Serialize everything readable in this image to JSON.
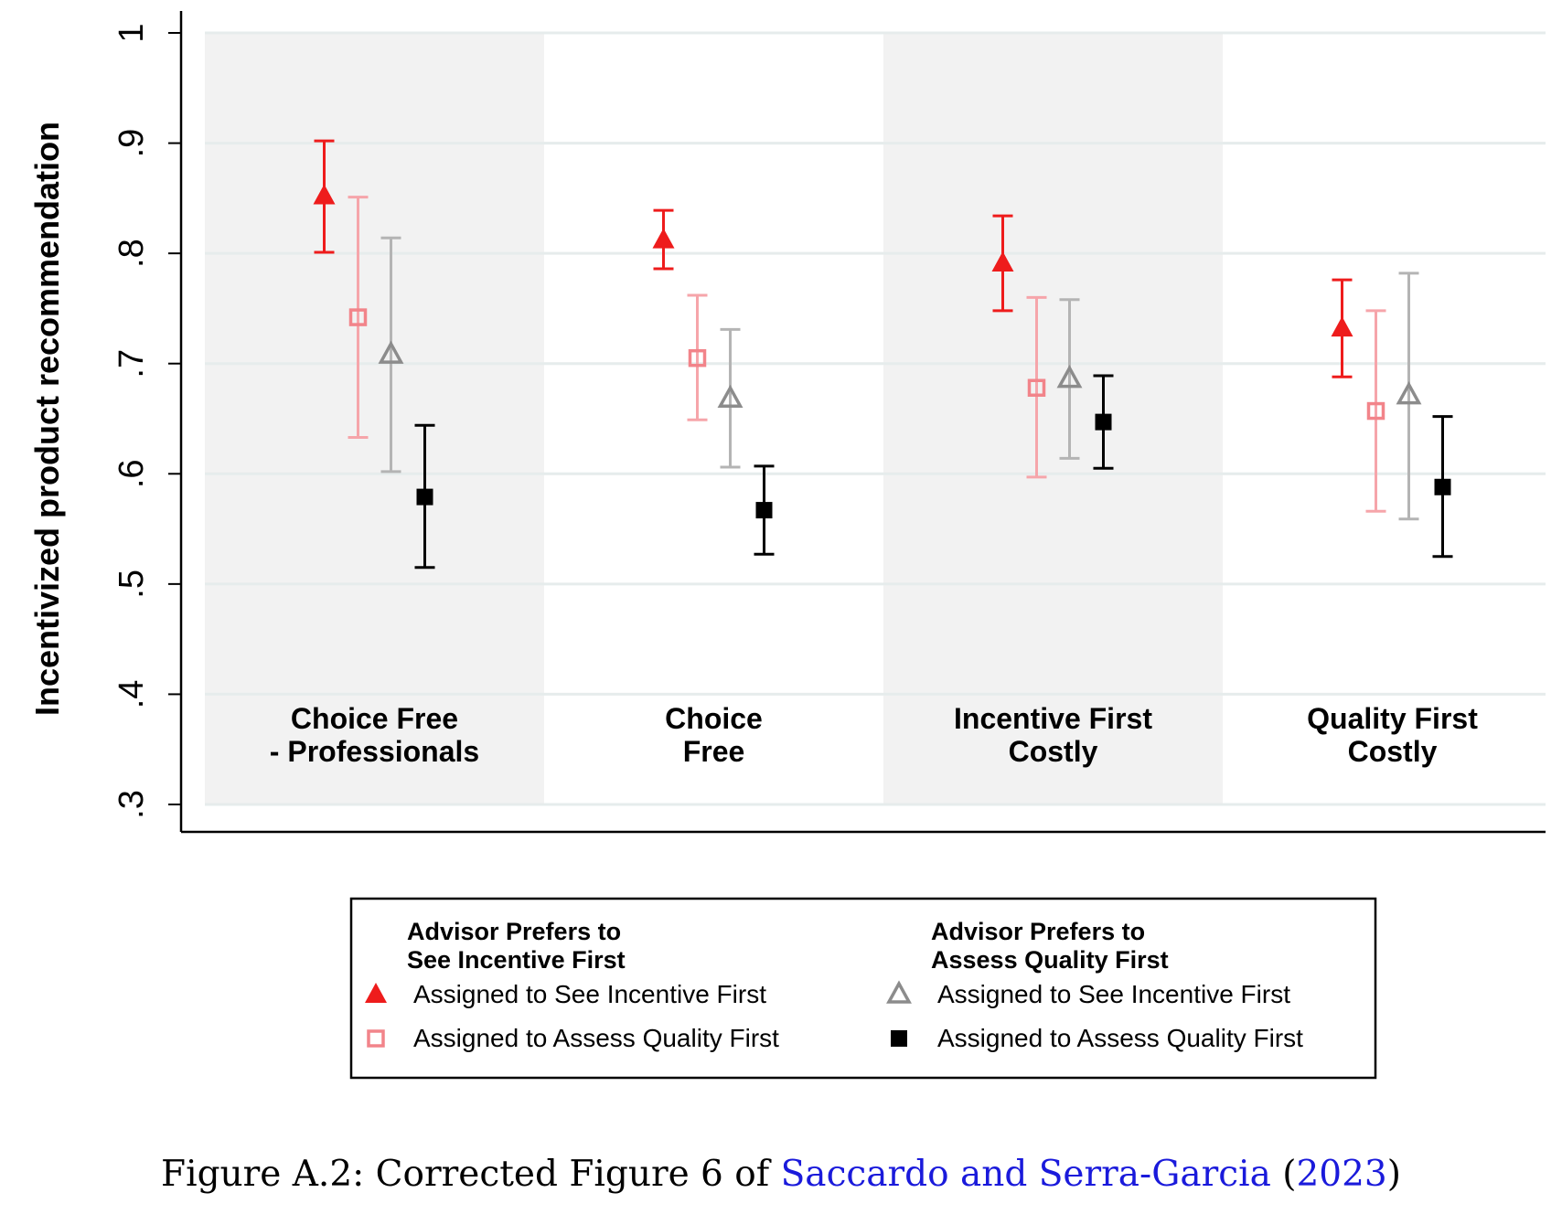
{
  "chart_data": {
    "type": "scatter",
    "subtype": "point-with-95pct-error-bars",
    "ylabel": "Incentivized product recommendation",
    "xlabel": "",
    "ylim": [
      0.3,
      1.0
    ],
    "yticks": [
      {
        "value": 0.3,
        "label": ".3"
      },
      {
        "value": 0.4,
        "label": ".4"
      },
      {
        "value": 0.5,
        "label": ".5"
      },
      {
        "value": 0.6,
        "label": ".6"
      },
      {
        "value": 0.7,
        "label": ".7"
      },
      {
        "value": 0.8,
        "label": ".8"
      },
      {
        "value": 0.9,
        "label": ".9"
      },
      {
        "value": 1.0,
        "label": "1"
      }
    ],
    "grid": true,
    "panels": [
      {
        "label_lines": [
          "Choice Free",
          "- Professionals"
        ],
        "shaded": true
      },
      {
        "label_lines": [
          "Choice",
          "Free"
        ],
        "shaded": false
      },
      {
        "label_lines": [
          "Incentive First",
          "Costly"
        ],
        "shaded": true
      },
      {
        "label_lines": [
          "Quality First",
          "Costly"
        ],
        "shaded": false
      }
    ],
    "series": [
      {
        "group": "Advisor Prefers to See Incentive First",
        "name": "Assigned to See Incentive First",
        "marker": "triangle-filled",
        "color": "#ee1c1c",
        "values": [
          0.852,
          0.812,
          0.791,
          0.732
        ],
        "ci_low": [
          0.801,
          0.786,
          0.748,
          0.688
        ],
        "ci_high": [
          0.902,
          0.839,
          0.834,
          0.776
        ]
      },
      {
        "group": "Advisor Prefers to See Incentive First",
        "name": "Assigned to Assess Quality First",
        "marker": "square-hollow",
        "color": "#f2848a",
        "values": [
          0.742,
          0.705,
          0.678,
          0.657
        ],
        "ci_low": [
          0.633,
          0.649,
          0.597,
          0.566
        ],
        "ci_high": [
          0.851,
          0.762,
          0.76,
          0.748
        ]
      },
      {
        "group": "Advisor Prefers to Assess Quality First",
        "name": "Assigned to See Incentive First",
        "marker": "triangle-hollow",
        "color": "#8c8c8c",
        "values": [
          0.708,
          0.668,
          0.686,
          0.671
        ],
        "ci_low": [
          0.602,
          0.606,
          0.614,
          0.559
        ],
        "ci_high": [
          0.814,
          0.731,
          0.758,
          0.782
        ]
      },
      {
        "group": "Advisor Prefers to Assess Quality First",
        "name": "Assigned to Assess Quality First",
        "marker": "square-filled",
        "color": "#000000",
        "values": [
          0.579,
          0.567,
          0.647,
          0.588
        ],
        "ci_low": [
          0.515,
          0.527,
          0.605,
          0.525
        ],
        "ci_high": [
          0.644,
          0.607,
          0.689,
          0.652
        ]
      }
    ],
    "legend": {
      "placement": "bottom",
      "columns": [
        {
          "heading_lines": [
            "Advisor Prefers to",
            "See Incentive First"
          ],
          "entries": [
            0,
            1
          ]
        },
        {
          "heading_lines": [
            "Advisor Prefers to",
            "Assess Quality First"
          ],
          "entries": [
            2,
            3
          ]
        }
      ]
    },
    "colors": {
      "panel_shade": "#f2f2f2",
      "grid": "#e6ecec",
      "error_bar_triangle_hollow": "#b4b4b4",
      "error_bar_square_hollow": "#f6a5aa"
    }
  },
  "caption": {
    "prefix": "Figure A.2: Corrected Figure 6 of ",
    "citation_authors": "Saccardo and Serra-Garcia",
    "paren_open": " (",
    "citation_year": "2023",
    "paren_close": ")"
  }
}
